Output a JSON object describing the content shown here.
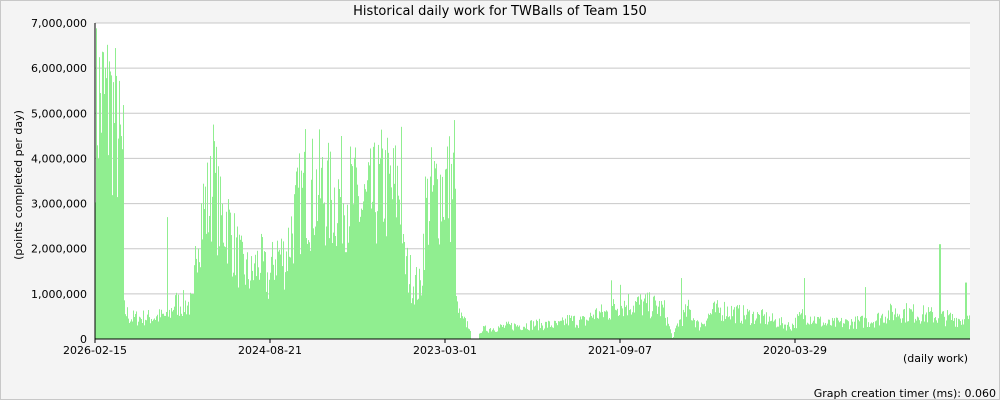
{
  "chart_data": {
    "type": "bar",
    "title": "Historical daily work for TWBalls of Team 150",
    "xlabel": "(daily work)",
    "ylabel": "(points completed per day)",
    "ylim": [
      0,
      7000000
    ],
    "yticks": [
      0,
      1000000,
      2000000,
      3000000,
      4000000,
      5000000,
      6000000,
      7000000
    ],
    "ytick_labels": [
      "0",
      "1,000,000",
      "2,000,000",
      "3,000,000",
      "4,000,000",
      "5,000,000",
      "6,000,000",
      "7,000,000"
    ],
    "xtick_labels": [
      "2026-02-15",
      "2024-08-21",
      "2023-03-01",
      "2021-09-07",
      "2020-03-29"
    ],
    "x_order": "newest-to-oldest",
    "grid": "horizontal",
    "bar_color": "#90ee90",
    "footer": "Graph creation timer (ms): 0.060",
    "series_points": [
      [
        0.0,
        5500000
      ],
      [
        0.004,
        5800000
      ],
      [
        0.008,
        5950000
      ],
      [
        0.012,
        5600000
      ],
      [
        0.016,
        6100000
      ],
      [
        0.02,
        5500000
      ],
      [
        0.024,
        5200000
      ],
      [
        0.028,
        4600000
      ],
      [
        0.031,
        4200000
      ],
      [
        0.033,
        750000
      ],
      [
        0.04,
        500000
      ],
      [
        0.06,
        500000
      ],
      [
        0.08,
        550000
      ],
      [
        0.082,
        2700000
      ],
      [
        0.084,
        550000
      ],
      [
        0.09,
        900000
      ],
      [
        0.1,
        800000
      ],
      [
        0.115,
        900000
      ],
      [
        0.118,
        3900000
      ],
      [
        0.122,
        3500000
      ],
      [
        0.13,
        4100000
      ],
      [
        0.135,
        4700000
      ],
      [
        0.145,
        3300000
      ],
      [
        0.155,
        4000000
      ],
      [
        0.16,
        2800000
      ],
      [
        0.17,
        1700000
      ],
      [
        0.18,
        2000000
      ],
      [
        0.19,
        2400000
      ],
      [
        0.2,
        1500000
      ],
      [
        0.21,
        2600000
      ],
      [
        0.22,
        2200000
      ],
      [
        0.23,
        3000000
      ],
      [
        0.24,
        3900000
      ],
      [
        0.25,
        4200000
      ],
      [
        0.26,
        4500000
      ],
      [
        0.27,
        3800000
      ],
      [
        0.28,
        4100000
      ],
      [
        0.29,
        4000000
      ],
      [
        0.3,
        3600000
      ],
      [
        0.31,
        3400000
      ],
      [
        0.32,
        3900000
      ],
      [
        0.33,
        4300000
      ],
      [
        0.34,
        4100000
      ],
      [
        0.35,
        4500000
      ],
      [
        0.355,
        2200000
      ],
      [
        0.36,
        1800000
      ],
      [
        0.37,
        1500000
      ],
      [
        0.38,
        3700000
      ],
      [
        0.39,
        3900000
      ],
      [
        0.4,
        4200000
      ],
      [
        0.41,
        4100000
      ],
      [
        0.412,
        3400000
      ],
      [
        0.413,
        800000
      ],
      [
        0.42,
        450000
      ],
      [
        0.428,
        350000
      ],
      [
        0.43,
        0
      ],
      [
        0.412,
        0
      ]
    ],
    "series_points_b": [
      [
        0.413,
        0
      ],
      [
        0.413,
        0
      ],
      [
        0.414,
        0
      ],
      [
        0.415,
        0
      ],
      [
        0.416,
        0
      ]
    ]
  }
}
